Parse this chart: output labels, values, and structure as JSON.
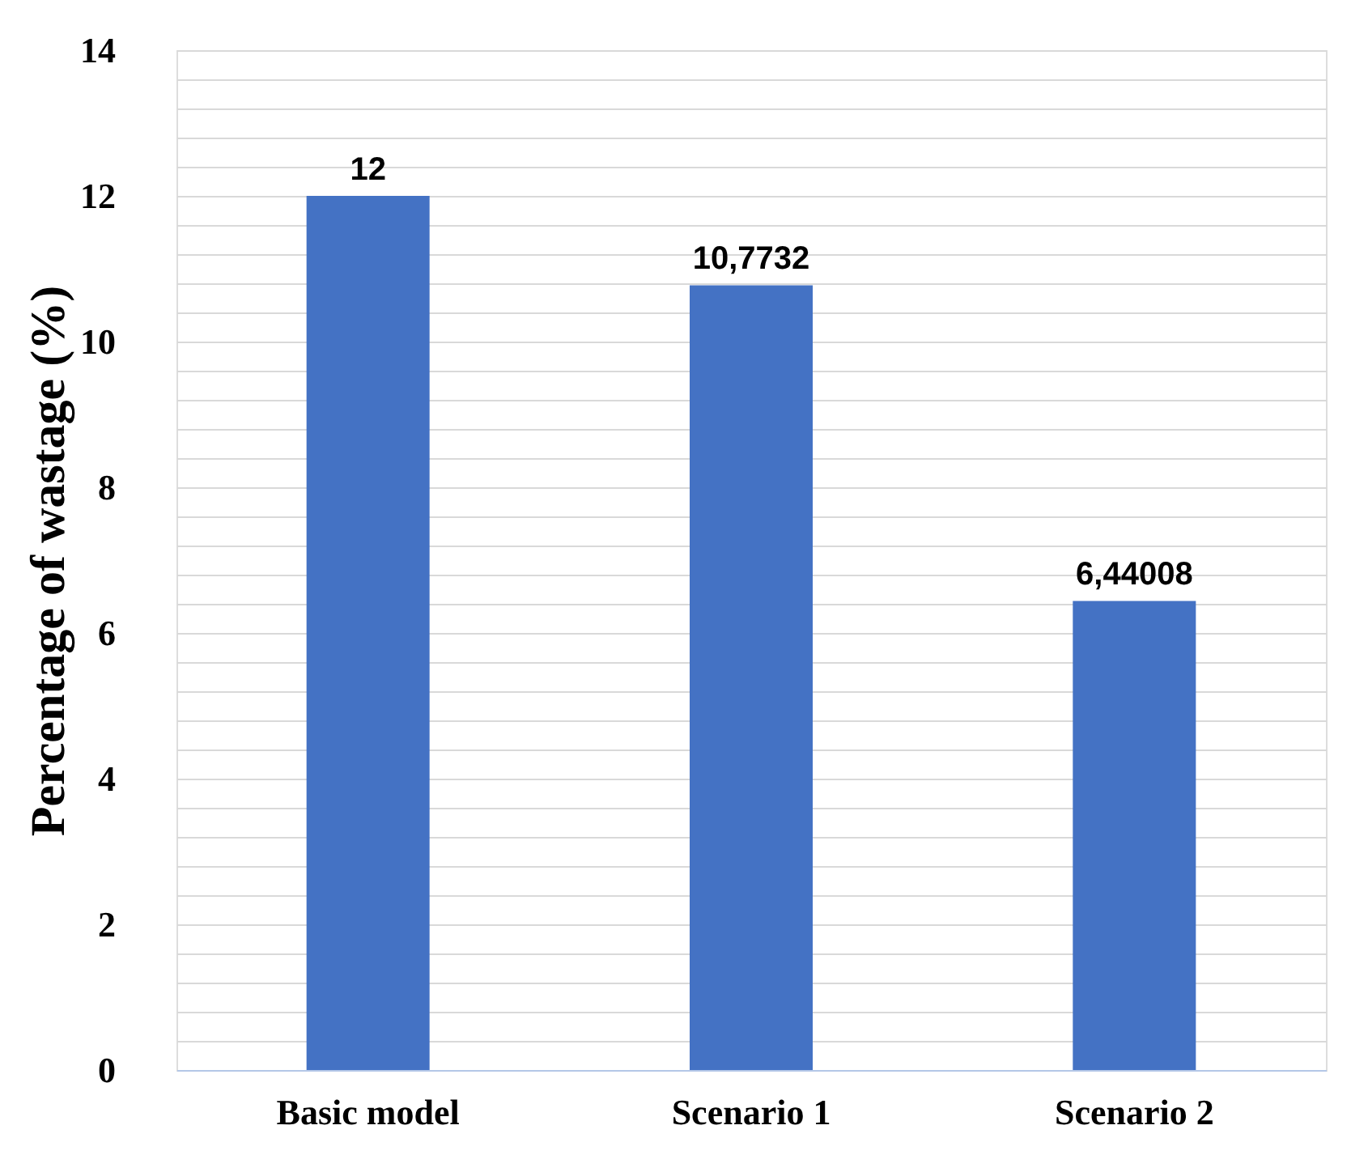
{
  "chart_data": {
    "type": "bar",
    "ylabel": "Percentage of wastage (%)",
    "categories": [
      "Basic model",
      "Scenario 1",
      "Scenario 2"
    ],
    "values": [
      12,
      10.7732,
      6.44008
    ],
    "value_labels": [
      "12",
      "10,7732",
      "6,44008"
    ],
    "color": "#4472c4",
    "ylim": [
      0,
      14
    ],
    "yticks": [
      0,
      {
        "value": 0.4,
        "label": null
      },
      {
        "value": 0.8,
        "label": null
      },
      {
        "value": 1.2,
        "label": null
      },
      {
        "value": 1.6,
        "label": null
      },
      2,
      {
        "value": 2.4,
        "label": null
      },
      {
        "value": 2.8,
        "label": null
      },
      {
        "value": 3.2,
        "label": null
      },
      {
        "value": 3.6,
        "label": null
      },
      4,
      {
        "value": 4.4,
        "label": null
      },
      {
        "value": 4.8,
        "label": null
      },
      {
        "value": 5.2,
        "label": null
      },
      {
        "value": 5.6,
        "label": null
      },
      6,
      {
        "value": 6.4,
        "label": null
      },
      {
        "value": 6.8,
        "label": null
      },
      {
        "value": 7.2,
        "label": null
      },
      {
        "value": 7.6,
        "label": null
      },
      8,
      {
        "value": 8.4,
        "label": null
      },
      {
        "value": 8.8,
        "label": null
      },
      {
        "value": 9.2,
        "label": null
      },
      {
        "value": 9.6,
        "label": null
      },
      10,
      {
        "value": 10.4,
        "label": null
      },
      {
        "value": 10.8,
        "label": null
      },
      {
        "value": 11.2,
        "label": null
      },
      {
        "value": 11.6,
        "label": null
      },
      12,
      {
        "value": 12.4,
        "label": null
      },
      {
        "value": 12.8,
        "label": null
      },
      {
        "value": 13.2,
        "label": null
      },
      {
        "value": 13.6,
        "label": null
      },
      14
    ],
    "grid": "y"
  }
}
